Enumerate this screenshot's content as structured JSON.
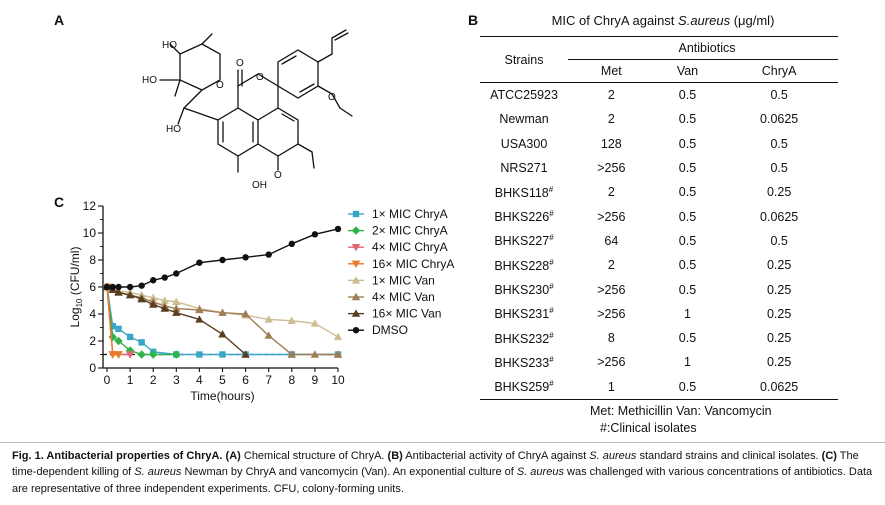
{
  "panels": {
    "a": "A",
    "b": "B",
    "c": "C"
  },
  "chem_labels": {
    "ho_top": "HO",
    "ho_left": "HO",
    "ho_bottom": "HO",
    "o_ring": "O",
    "o_lactone_carbonyl": "O",
    "o_lactone": "O",
    "o_methoxy_right": "O",
    "oh": "OH",
    "o_methoxy_bottom": "O"
  },
  "table": {
    "title_prefix": "MIC of ChryA against ",
    "title_species": "S.aureus",
    "title_unit": " (μg/ml)",
    "col_strains": "Strains",
    "col_group": "Antibiotics",
    "cols": [
      "Met",
      "Van",
      "ChryA"
    ],
    "rows": [
      {
        "strain": "ATCC25923",
        "sup": "",
        "met": "2",
        "van": "0.5",
        "chrya": "0.5"
      },
      {
        "strain": "Newman",
        "sup": "",
        "met": "2",
        "van": "0.5",
        "chrya": "0.0625"
      },
      {
        "strain": "USA300",
        "sup": "",
        "met": "128",
        "van": "0.5",
        "chrya": "0.5"
      },
      {
        "strain": "NRS271",
        "sup": "",
        "met": ">256",
        "van": "0.5",
        "chrya": "0.5"
      },
      {
        "strain": "BHKS118",
        "sup": "#",
        "met": "2",
        "van": "0.5",
        "chrya": "0.25"
      },
      {
        "strain": "BHKS226",
        "sup": "#",
        "met": ">256",
        "van": "0.5",
        "chrya": "0.0625"
      },
      {
        "strain": "BHKS227",
        "sup": "#",
        "met": "64",
        "van": "0.5",
        "chrya": "0.5"
      },
      {
        "strain": "BHKS228",
        "sup": "#",
        "met": "2",
        "van": "0.5",
        "chrya": "0.25"
      },
      {
        "strain": "BHKS230",
        "sup": "#",
        "met": ">256",
        "van": "0.5",
        "chrya": "0.25"
      },
      {
        "strain": "BHKS231",
        "sup": "#",
        "met": ">256",
        "van": "1",
        "chrya": "0.25"
      },
      {
        "strain": "BHKS232",
        "sup": "#",
        "met": "8",
        "van": "0.5",
        "chrya": "0.25"
      },
      {
        "strain": "BHKS233",
        "sup": "#",
        "met": ">256",
        "van": "1",
        "chrya": "0.25"
      },
      {
        "strain": "BHKS259",
        "sup": "#",
        "met": "1",
        "van": "0.5",
        "chrya": "0.0625"
      }
    ],
    "footnote1": "Met: Methicillin  Van: Vancomycin",
    "footnote2": "#:Clinical isolates"
  },
  "chart_data": {
    "type": "line",
    "xlabel": "Time(hours)",
    "ylabel": "Log10 (CFU/ml)",
    "xlim": [
      0,
      10
    ],
    "ylim": [
      0,
      12
    ],
    "xticks": [
      "0",
      "1",
      "2",
      "3",
      "4",
      "5",
      "6",
      "7",
      "8",
      "9",
      "10"
    ],
    "yticks": [
      "0",
      "2",
      "4",
      "6",
      "8",
      "10",
      "12"
    ],
    "detection_limit": 1,
    "legend_position": "right",
    "series": [
      {
        "name": "1× MIC ChryA",
        "color": "#3aa6c8",
        "marker": "square",
        "x": [
          0,
          0.25,
          0.5,
          1,
          1.5,
          2,
          3,
          4,
          5,
          6,
          8,
          10
        ],
        "y": [
          6,
          3.1,
          2.9,
          2.3,
          1.9,
          1.2,
          1,
          1,
          1,
          1,
          1,
          1
        ]
      },
      {
        "name": "2× MIC ChryA",
        "color": "#2db34a",
        "marker": "diamond",
        "x": [
          0,
          0.25,
          0.5,
          1,
          1.5,
          2,
          3
        ],
        "y": [
          6,
          2.3,
          2,
          1.3,
          1,
          1,
          1
        ]
      },
      {
        "name": "4× MIC ChryA",
        "color": "#e0696f",
        "marker": "triangle-down",
        "x": [
          0,
          0.25,
          0.5,
          1
        ],
        "y": [
          6,
          1,
          1,
          1
        ]
      },
      {
        "name": "16× MIC ChryA",
        "color": "#ec7a2c",
        "marker": "triangle-down",
        "x": [
          0,
          0.25,
          0.5
        ],
        "y": [
          6,
          1,
          1
        ]
      },
      {
        "name": "1× MIC Van",
        "color": "#cdbd92",
        "marker": "triangle",
        "x": [
          0,
          0.25,
          0.5,
          1,
          1.5,
          2,
          2.5,
          3,
          4,
          5,
          6,
          7,
          8,
          9,
          10
        ],
        "y": [
          6,
          5.9,
          5.7,
          5.6,
          5.4,
          5.2,
          5,
          4.9,
          4.4,
          4.1,
          3.9,
          3.6,
          3.5,
          3.3,
          2.3
        ]
      },
      {
        "name": "4× MIC Van",
        "color": "#a07e55",
        "marker": "triangle",
        "x": [
          0,
          0.25,
          0.5,
          1,
          1.5,
          2,
          2.5,
          3,
          4,
          5,
          6,
          7,
          8,
          9,
          10
        ],
        "y": [
          6,
          5.8,
          5.6,
          5.4,
          5.2,
          4.9,
          4.6,
          4.4,
          4.3,
          4.1,
          4,
          2.4,
          1,
          1,
          1
        ]
      },
      {
        "name": "16× MIC Van",
        "color": "#5a3e22",
        "marker": "triangle",
        "x": [
          0,
          0.25,
          0.5,
          1,
          1.5,
          2,
          2.5,
          3,
          4,
          5,
          6
        ],
        "y": [
          6,
          5.8,
          5.6,
          5.4,
          5.1,
          4.7,
          4.4,
          4.1,
          3.6,
          2.5,
          1
        ]
      },
      {
        "name": "DMSO",
        "color": "#111111",
        "marker": "circle",
        "x": [
          0,
          0.25,
          0.5,
          1,
          1.5,
          2,
          2.5,
          3,
          4,
          5,
          6,
          7,
          8,
          9,
          10
        ],
        "y": [
          6,
          6,
          6,
          6,
          6.1,
          6.5,
          6.7,
          7,
          7.8,
          8,
          8.2,
          8.4,
          9.2,
          9.9,
          10.3
        ]
      }
    ]
  },
  "caption": {
    "fig_label": "Fig. 1. Antibacterial properties of ChryA.",
    "a_label": "(A)",
    "a_text": " Chemical structure of ChryA. ",
    "b_label": "(B)",
    "b_text1": " Antibacterial activity of ChryA against ",
    "b_species": "S. aureus",
    "b_text2": " standard strains and clinical isolates. ",
    "c_label": "(C)",
    "c_text1": " The time-dependent killing of ",
    "c_species1": "S. aureus",
    "c_text2": " Newman by ChryA and vancomycin (Van). An exponential culture of ",
    "c_species2": "S. aureus",
    "c_text3": " was challenged with various concentrations of antibiotics. Data are representative of three independent experiments. CFU, colony-forming units."
  }
}
